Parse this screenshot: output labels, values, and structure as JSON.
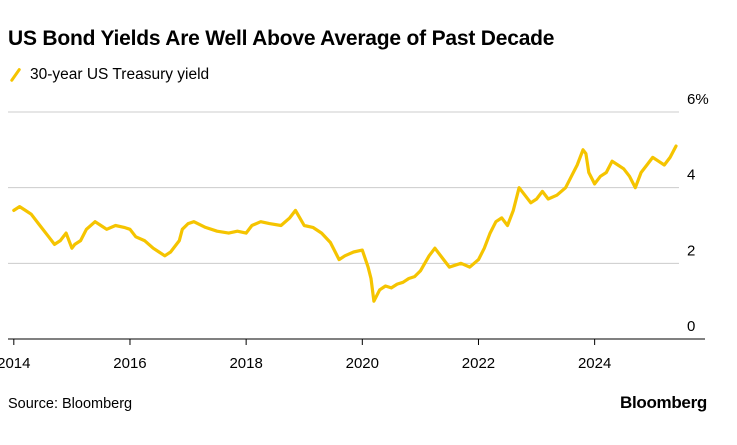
{
  "title": "US Bond Yields Are Well Above Average of Past Decade",
  "source": "Source: Bloomberg",
  "brand": "Bloomberg",
  "colors": {
    "series": "#f5c400",
    "grid": "#cccccc",
    "axis": "#000000"
  },
  "chart_data": {
    "type": "line",
    "series": [
      {
        "name": "30-year US Treasury yield",
        "x": [
          2014.0,
          2014.1,
          2014.2,
          2014.3,
          2014.45,
          2014.6,
          2014.7,
          2014.8,
          2014.9,
          2015.0,
          2015.05,
          2015.15,
          2015.25,
          2015.4,
          2015.5,
          2015.6,
          2015.75,
          2015.9,
          2016.0,
          2016.1,
          2016.25,
          2016.4,
          2016.5,
          2016.6,
          2016.7,
          2016.85,
          2016.9,
          2017.0,
          2017.1,
          2017.3,
          2017.5,
          2017.7,
          2017.85,
          2018.0,
          2018.1,
          2018.25,
          2018.4,
          2018.6,
          2018.75,
          2018.85,
          2019.0,
          2019.15,
          2019.3,
          2019.45,
          2019.6,
          2019.7,
          2019.85,
          2020.0,
          2020.1,
          2020.15,
          2020.2,
          2020.3,
          2020.4,
          2020.5,
          2020.6,
          2020.7,
          2020.8,
          2020.9,
          2021.0,
          2021.15,
          2021.25,
          2021.4,
          2021.5,
          2021.6,
          2021.7,
          2021.85,
          2022.0,
          2022.1,
          2022.2,
          2022.3,
          2022.4,
          2022.5,
          2022.6,
          2022.7,
          2022.8,
          2022.9,
          2023.0,
          2023.1,
          2023.2,
          2023.35,
          2023.5,
          2023.6,
          2023.7,
          2023.8,
          2023.85,
          2023.9,
          2024.0,
          2024.1,
          2024.2,
          2024.3,
          2024.4,
          2024.5,
          2024.6,
          2024.7,
          2024.8,
          2024.9,
          2025.0,
          2025.1,
          2025.2,
          2025.3,
          2025.4
        ],
        "values": [
          3.4,
          3.5,
          3.4,
          3.3,
          3.0,
          2.7,
          2.5,
          2.6,
          2.8,
          2.4,
          2.5,
          2.6,
          2.9,
          3.1,
          3.0,
          2.9,
          3.0,
          2.95,
          2.9,
          2.7,
          2.6,
          2.4,
          2.3,
          2.2,
          2.3,
          2.6,
          2.9,
          3.05,
          3.1,
          2.95,
          2.85,
          2.8,
          2.85,
          2.8,
          3.0,
          3.1,
          3.05,
          3.0,
          3.2,
          3.4,
          3.0,
          2.95,
          2.8,
          2.55,
          2.1,
          2.2,
          2.3,
          2.35,
          1.9,
          1.6,
          1.0,
          1.3,
          1.4,
          1.35,
          1.45,
          1.5,
          1.6,
          1.65,
          1.8,
          2.2,
          2.4,
          2.1,
          1.9,
          1.95,
          2.0,
          1.9,
          2.1,
          2.4,
          2.8,
          3.1,
          3.2,
          3.0,
          3.4,
          4.0,
          3.8,
          3.6,
          3.7,
          3.9,
          3.7,
          3.8,
          4.0,
          4.3,
          4.6,
          5.0,
          4.9,
          4.4,
          4.1,
          4.3,
          4.4,
          4.7,
          4.6,
          4.5,
          4.3,
          4.0,
          4.4,
          4.6,
          4.8,
          4.7,
          4.6,
          4.8,
          5.1
        ]
      }
    ],
    "xlim": [
      2013.9,
      2025.9
    ],
    "ylim": [
      0,
      6
    ],
    "x_ticks": [
      2014,
      2016,
      2018,
      2020,
      2022,
      2024
    ],
    "x_tick_labels": [
      "2014",
      "2016",
      "2018",
      "2020",
      "2022",
      "2024"
    ],
    "y_ticks": [
      0,
      2,
      4,
      6
    ],
    "y_tick_labels": [
      "0",
      "2",
      "4",
      "6%"
    ],
    "grid": true,
    "legend": "top-left"
  }
}
